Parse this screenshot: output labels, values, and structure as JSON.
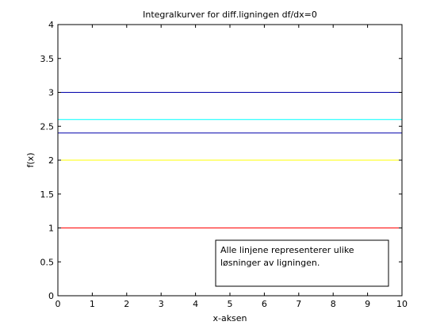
{
  "chart_data": {
    "type": "line",
    "title": "Integralkurver for diff.ligningen df/dx=0",
    "xlabel": "x-aksen",
    "ylabel": "f(x)",
    "xlim": [
      0,
      10
    ],
    "ylim": [
      0,
      4
    ],
    "xticks": [
      "0",
      "1",
      "2",
      "3",
      "4",
      "5",
      "6",
      "7",
      "8",
      "9",
      "10"
    ],
    "yticks": [
      "0",
      "0.5",
      "1",
      "1.5",
      "2",
      "2.5",
      "3",
      "3.5",
      "4"
    ],
    "grid": false,
    "series": [
      {
        "x": [
          0,
          10
        ],
        "y": [
          1,
          1
        ],
        "color": "#ff0000"
      },
      {
        "x": [
          0,
          10
        ],
        "y": [
          2,
          2
        ],
        "color": "#ffff00"
      },
      {
        "x": [
          0,
          10
        ],
        "y": [
          2.4,
          2.4
        ],
        "color": "#0000aa"
      },
      {
        "x": [
          0,
          10
        ],
        "y": [
          2.6,
          2.6
        ],
        "color": "#00ffff"
      },
      {
        "x": [
          0,
          10
        ],
        "y": [
          3,
          3
        ],
        "color": "#0000aa"
      }
    ],
    "annotation": {
      "lines": [
        "Alle linjene representerer ulike",
        "løsninger av ligningen."
      ]
    }
  }
}
